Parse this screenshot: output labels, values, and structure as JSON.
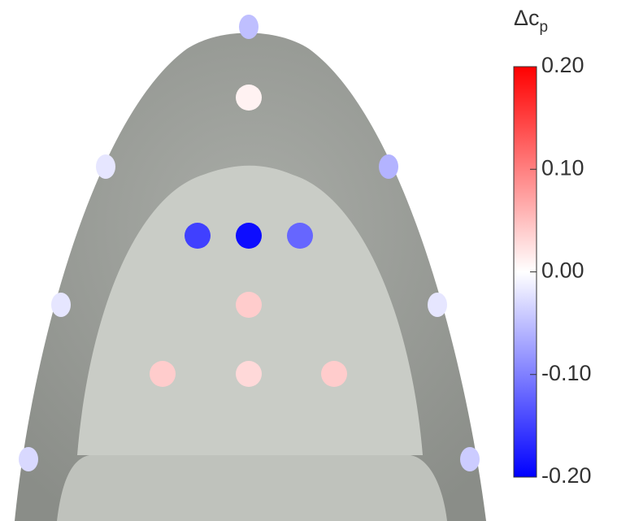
{
  "chart_data": {
    "type": "colormap",
    "colorbar_title": "Δc",
    "colorbar_title_sub": "p",
    "clim": [
      -0.2,
      0.2
    ],
    "cticks": [
      {
        "value": 0.2,
        "label": "0.20"
      },
      {
        "value": 0.1,
        "label": "0.10"
      },
      {
        "value": 0,
        "label": "0.00"
      },
      {
        "value": -0.1,
        "label": "-0.10"
      },
      {
        "value": -0.2,
        "label": "-0.20"
      }
    ],
    "colors": [
      "#0000ff",
      "#ffffff",
      "#ff0000"
    ],
    "values": [
      0.01,
      -0.15,
      -0.19,
      -0.12,
      0.04,
      0.04,
      0.03,
      0.04,
      -0.05,
      -0.02,
      -0.06,
      -0.02,
      -0.02,
      -0.03,
      -0.04
    ]
  }
}
